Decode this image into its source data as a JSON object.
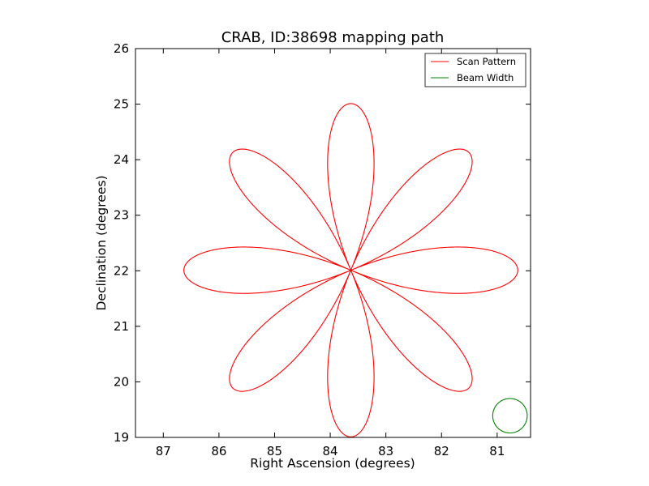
{
  "chart_data": {
    "type": "line",
    "title": "CRAB, ID:38698 mapping path",
    "xlabel": "Right Ascension (degrees)",
    "ylabel": "Declination (degrees)",
    "xlim": [
      87.5,
      80.4
    ],
    "ylim": [
      19,
      26
    ],
    "x_inverted": true,
    "xticks": [
      87,
      86,
      85,
      84,
      83,
      82,
      81
    ],
    "yticks": [
      19,
      20,
      21,
      22,
      23,
      24,
      25,
      26
    ],
    "grid": false,
    "legend_position": "top-right",
    "series": [
      {
        "name": "Scan Pattern",
        "color": "#ff0000",
        "pattern": "rose",
        "center": [
          83.63,
          22.01
        ],
        "petals": 8,
        "radius_deg": 3.0
      },
      {
        "name": "Beam Width",
        "color": "#008000",
        "pattern": "circle",
        "center": [
          80.77,
          19.39
        ],
        "radius_deg": 0.31
      }
    ]
  }
}
